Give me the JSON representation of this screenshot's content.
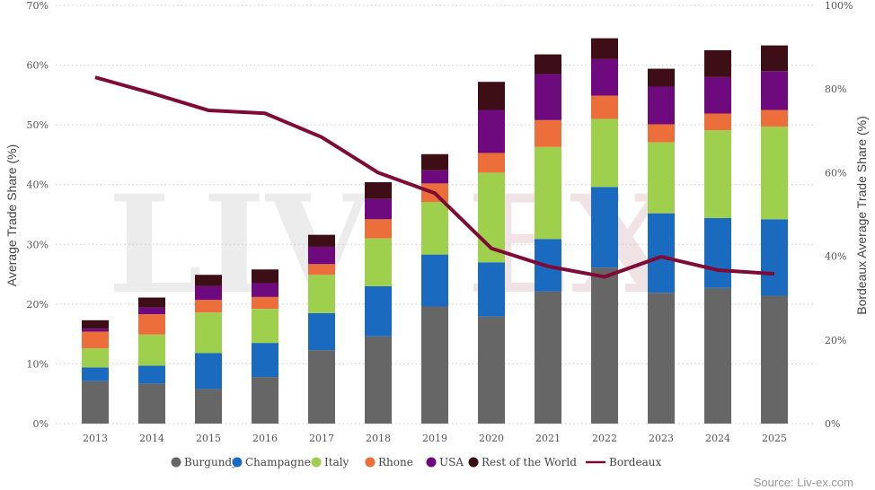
{
  "chart_data": {
    "type": "bar",
    "stacked": true,
    "categories": [
      "2013",
      "2014",
      "2015",
      "2016",
      "2017",
      "2018",
      "2019",
      "2020",
      "2021",
      "2022",
      "2023",
      "2024",
      "2025"
    ],
    "series": [
      {
        "name": "Burgundy",
        "color": "#666666",
        "values": [
          7.1,
          6.7,
          5.8,
          7.8,
          12.3,
          14.6,
          19.6,
          17.9,
          22.1,
          26.1,
          21.9,
          22.7,
          21.4
        ]
      },
      {
        "name": "Champagne",
        "color": "#1a6bbf",
        "values": [
          2.3,
          3.0,
          6.0,
          5.7,
          6.2,
          8.4,
          8.7,
          9.1,
          8.8,
          13.5,
          13.3,
          11.7,
          12.8
        ]
      },
      {
        "name": "Italy",
        "color": "#9fd04d",
        "values": [
          3.2,
          5.2,
          6.8,
          5.7,
          6.4,
          8.0,
          8.8,
          15.0,
          15.4,
          11.4,
          11.9,
          14.7,
          15.5
        ]
      },
      {
        "name": "Rhone",
        "color": "#ec6f3b",
        "values": [
          2.8,
          3.4,
          2.1,
          2.0,
          1.8,
          3.2,
          3.1,
          3.3,
          4.5,
          3.9,
          3.0,
          2.8,
          2.8
        ]
      },
      {
        "name": "USA",
        "color": "#6e0a7e",
        "values": [
          0.5,
          1.1,
          2.3,
          2.3,
          2.9,
          3.4,
          2.2,
          7.2,
          7.7,
          6.1,
          6.3,
          6.1,
          6.5
        ]
      },
      {
        "name": "Rest of the World",
        "color": "#3d0e16",
        "values": [
          1.4,
          1.7,
          1.9,
          2.3,
          2.0,
          2.8,
          2.7,
          4.7,
          3.3,
          3.5,
          3.0,
          4.5,
          4.3
        ]
      }
    ],
    "line_series": {
      "name": "Bordeaux",
      "color": "#7e0a35",
      "axis": "right",
      "values": [
        82.8,
        79.0,
        74.9,
        74.2,
        68.5,
        60.0,
        55.1,
        41.9,
        37.6,
        35.1,
        39.9,
        36.7,
        35.8
      ]
    },
    "ylabel": "Average Trade Share (%)",
    "y2label": "Bordeaux Average Trade Share (%)",
    "ylim": [
      0,
      70
    ],
    "y2lim": [
      0,
      100
    ],
    "yticks": [
      "0%",
      "10%",
      "20%",
      "30%",
      "40%",
      "50%",
      "60%",
      "70%"
    ],
    "y2ticks": [
      "0%",
      "20%",
      "40%",
      "60%",
      "80%",
      "100%"
    ],
    "grid": true,
    "legend": "bottom",
    "source": "Source: Liv-ex.com",
    "watermark": "LIV-EX"
  }
}
